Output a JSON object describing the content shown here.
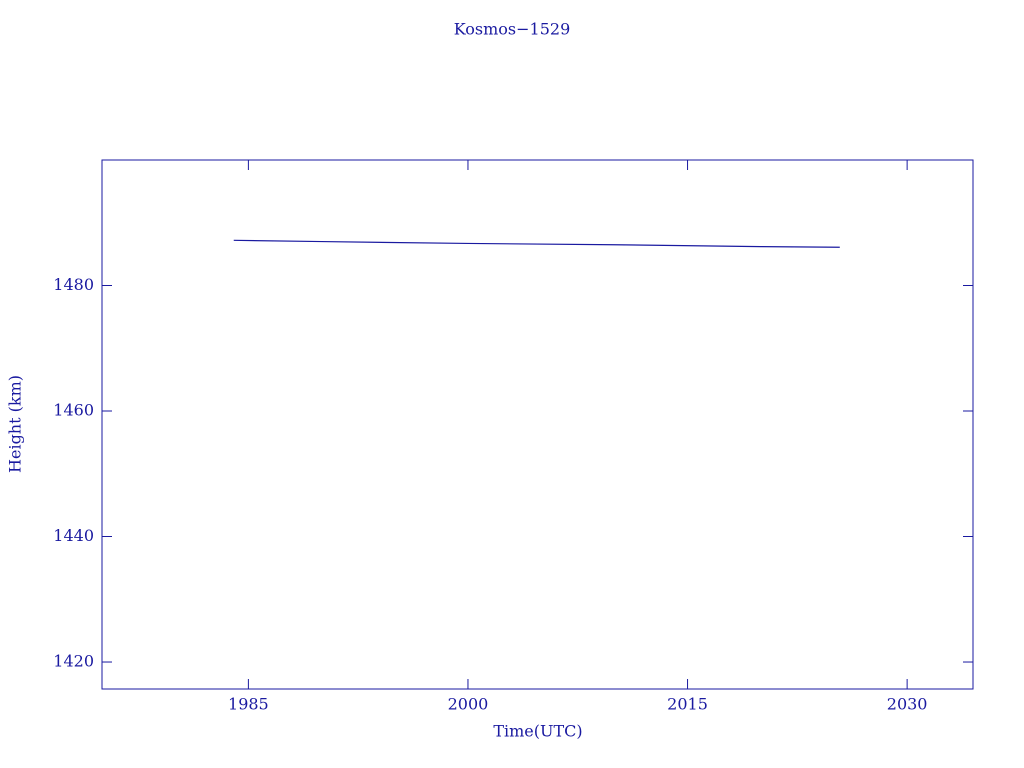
{
  "chart_data": {
    "type": "line",
    "title": "Kosmos−1529",
    "x_label": "Time(UTC)",
    "y_label": "Height (km)",
    "x": [
      1984.0,
      1990,
      2000,
      2010,
      2020,
      2025.4
    ],
    "series": [
      {
        "name": "Kosmos−1529",
        "color": "#1a1aa0",
        "values": [
          1487.2,
          1487.0,
          1486.7,
          1486.5,
          1486.2,
          1486.1
        ]
      }
    ],
    "xlim": [
      1975,
      2034.5
    ],
    "xticks": [
      1985,
      2000,
      2015,
      2030
    ],
    "ylim": [
      1415.7,
      1500
    ],
    "yticks": [
      1420,
      1440,
      1460,
      1480
    ]
  }
}
